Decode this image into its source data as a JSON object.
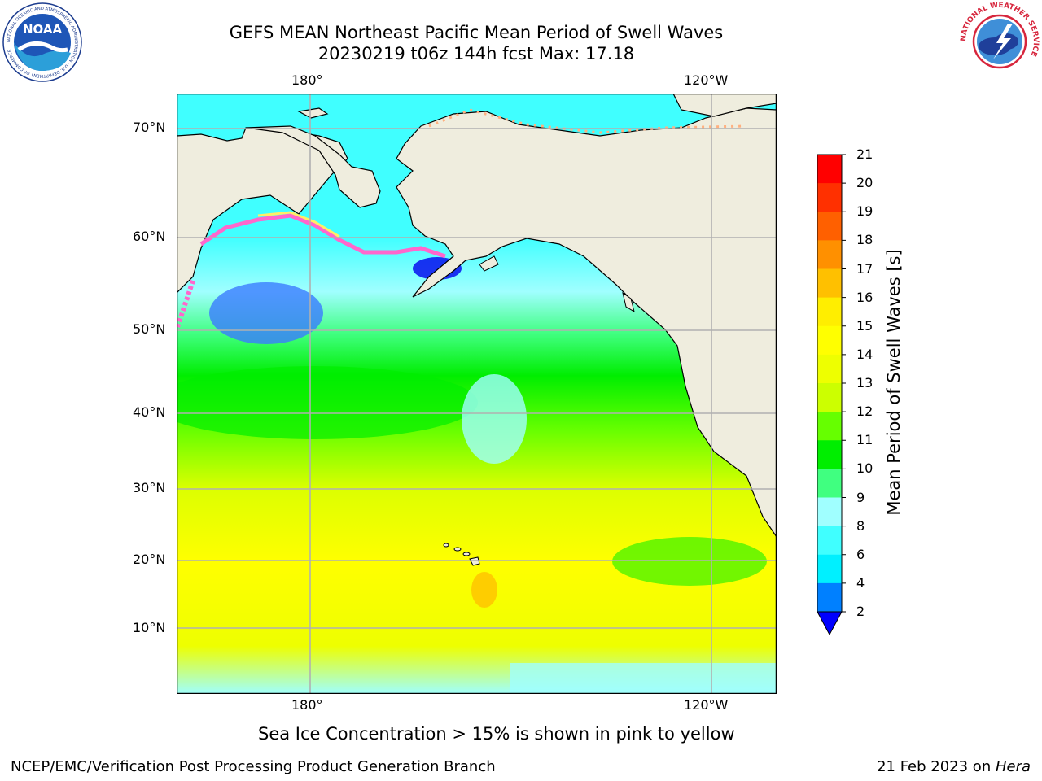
{
  "title": {
    "line1": "GEFS MEAN Northeast Pacific Mean Period of Swell Waves",
    "line2": "20230219 t06z 144h fcst   Max: 17.18"
  },
  "map": {
    "top_lon_labels": [
      "180°",
      "120°W"
    ],
    "bottom_lon_labels": [
      "180°",
      "120°W"
    ],
    "lat_labels": [
      "70°N",
      "60°N",
      "50°N",
      "40°N",
      "30°N",
      "20°N",
      "10°N"
    ],
    "colors": {
      "land": "#efedde",
      "ice_pink": "#ff66cc",
      "ice_yellow": "#ffee66"
    }
  },
  "colorbar": {
    "label": "Mean Period of Swell Waves [s]",
    "ticks": [
      "2",
      "4",
      "6",
      "8",
      "9",
      "10",
      "11",
      "12",
      "13",
      "14",
      "15",
      "16",
      "17",
      "18",
      "19",
      "20",
      "21"
    ],
    "colors": [
      "#0000ff",
      "#0080ff",
      "#00f0ff",
      "#40ffff",
      "#a0ffff",
      "#40ff80",
      "#00ee00",
      "#66ff00",
      "#ccff00",
      "#eeff00",
      "#ffff00",
      "#ffee00",
      "#ffc000",
      "#ff9000",
      "#ff6000",
      "#ff3000",
      "#ff0000"
    ]
  },
  "caption": "Sea Ice Concentration > 15% is shown in pink to yellow",
  "footer": {
    "left": "NCEP/EMC/Verification Post Processing Product Generation Branch",
    "date": "21 Feb 2023 on ",
    "host": "Hera"
  },
  "logos": {
    "noaa_text": "NOAA",
    "noaa_ring": "NATIONAL OCEANIC AND ATMOSPHERIC ADMINISTRATION · U.S. DEPARTMENT OF COMMERCE",
    "nws_ring": "NATIONAL WEATHER SERVICE"
  }
}
